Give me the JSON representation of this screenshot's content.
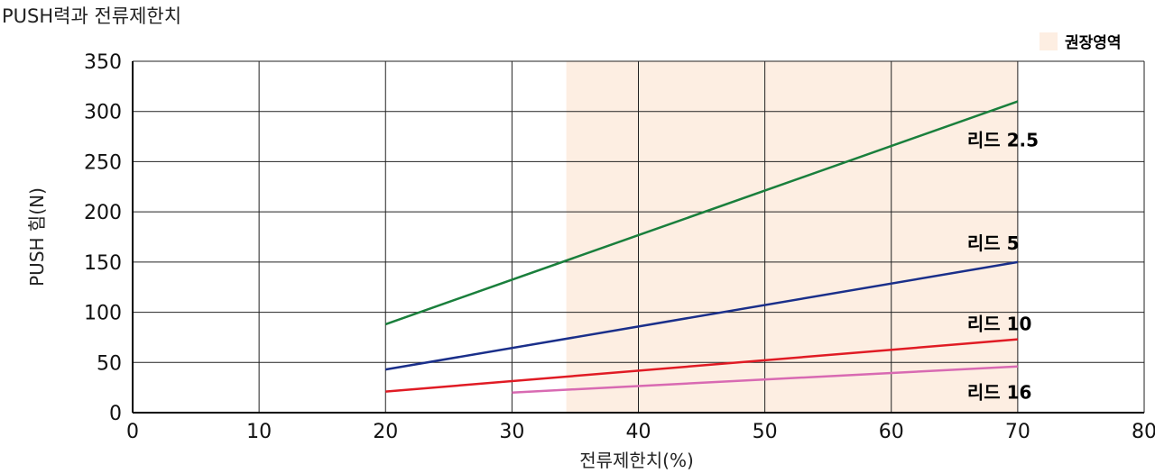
{
  "chart_data": {
    "type": "line",
    "title": "PUSH력과 전류제한치",
    "xlabel": "전류제한치(%)",
    "ylabel": "PUSH 힘(N)",
    "xlim": [
      0,
      80
    ],
    "ylim": [
      0,
      350
    ],
    "x_ticks": [
      0,
      10,
      20,
      30,
      40,
      50,
      60,
      70,
      80
    ],
    "y_ticks": [
      0,
      50,
      100,
      150,
      200,
      250,
      300,
      350
    ],
    "grid": true,
    "recommended_region": {
      "label": "권장영역",
      "x_range": [
        34.3,
        70
      ],
      "color": "#fdeee2"
    },
    "series": [
      {
        "name": "리드 2.5",
        "color": "#1a7f3c",
        "x": [
          20,
          70
        ],
        "y": [
          88,
          310
        ]
      },
      {
        "name": "리드 5",
        "color": "#1a2f8a",
        "x": [
          20,
          70
        ],
        "y": [
          43,
          150
        ]
      },
      {
        "name": "리드 10",
        "color": "#e01b24",
        "x": [
          20,
          70
        ],
        "y": [
          21,
          73
        ]
      },
      {
        "name": "리드 16",
        "color": "#d86ab2",
        "x": [
          30,
          70
        ],
        "y": [
          20,
          46
        ]
      }
    ]
  }
}
